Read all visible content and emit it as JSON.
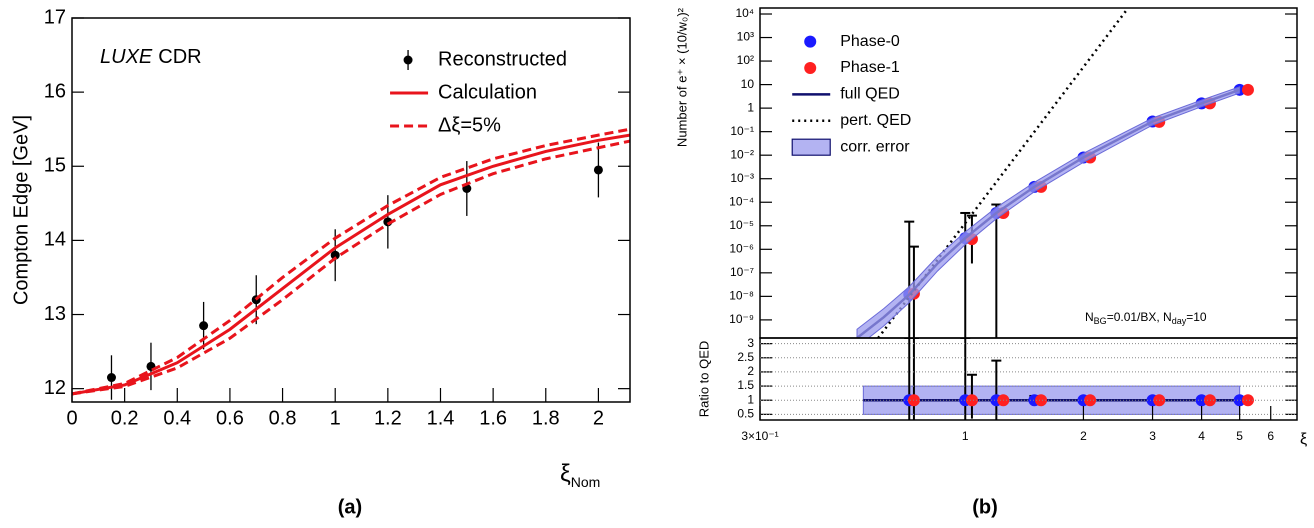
{
  "chart_data": [
    {
      "type": "line",
      "caption": "(a)",
      "ylabel": "Compton Edge [GeV]",
      "xlabel": [
        "ξ",
        "Nom"
      ],
      "annotation": [
        "LUXE",
        "CDR"
      ],
      "xlim": [
        0,
        2.12
      ],
      "ylim": [
        11.82,
        17
      ],
      "xticks": [
        0,
        0.2,
        0.4,
        0.6,
        0.8,
        1,
        1.2,
        1.4,
        1.6,
        1.8,
        2
      ],
      "yticks": [
        12,
        13,
        14,
        15,
        16,
        17
      ],
      "legend": "top-right",
      "series": [
        {
          "name": "Reconstructed",
          "type": "errorbar",
          "color": "#000000",
          "x": [
            0.15,
            0.3,
            0.5,
            0.7,
            1,
            1.2,
            1.5,
            2
          ],
          "values": [
            12.15,
            12.3,
            12.85,
            13.2,
            13.8,
            14.25,
            14.7,
            14.95
          ],
          "errors": [
            0.3,
            0.32,
            0.32,
            0.33,
            0.35,
            0.36,
            0.37,
            0.37
          ]
        },
        {
          "name": "Calculation",
          "type": "line",
          "color": "#e8141c",
          "x": [
            0,
            0.2,
            0.4,
            0.6,
            0.8,
            1,
            1.2,
            1.4,
            1.6,
            1.8,
            2,
            2.12
          ],
          "values": [
            11.93,
            12.05,
            12.35,
            12.8,
            13.35,
            13.9,
            14.35,
            14.75,
            15.0,
            15.2,
            15.35,
            15.42
          ]
        },
        {
          "name": "Δξ=5%",
          "type": "line",
          "style": "dashed",
          "color": "#e8141c",
          "x": [
            0,
            0.2,
            0.4,
            0.6,
            0.8,
            1,
            1.2,
            1.4,
            1.6,
            1.8,
            2,
            2.12
          ],
          "values": [
            11.93,
            12.07,
            12.42,
            12.92,
            13.5,
            14.03,
            14.47,
            14.85,
            15.1,
            15.28,
            15.42,
            15.5
          ],
          "values_low": [
            11.93,
            12.03,
            12.28,
            12.68,
            13.2,
            13.76,
            14.22,
            14.62,
            14.9,
            15.1,
            15.25,
            15.34
          ]
        }
      ]
    },
    {
      "type": "line",
      "caption": "(b)",
      "ylabel": "Number of e⁺ × (10/w₀)²",
      "annotation": [
        "N",
        "BG",
        "=0.01/BX, N",
        "day",
        "=10"
      ],
      "logx": true,
      "logy": true,
      "xlim": [
        0.3,
        7
      ],
      "ylim": [
        1.7e-10,
        18000
      ],
      "yticks": [
        {
          "value": 1e-09,
          "label": "10⁻⁹"
        },
        {
          "value": 1e-08,
          "label": "10⁻⁸"
        },
        {
          "value": 1e-07,
          "label": "10⁻⁷"
        },
        {
          "value": 1e-06,
          "label": "10⁻⁶"
        },
        {
          "value": 1e-05,
          "label": "10⁻⁵"
        },
        {
          "value": 0.0001,
          "label": "10⁻⁴"
        },
        {
          "value": 0.001,
          "label": "10⁻³"
        },
        {
          "value": 0.01,
          "label": "10⁻²"
        },
        {
          "value": 0.1,
          "label": "10⁻¹"
        },
        1,
        10,
        {
          "value": 100,
          "label": "10²"
        },
        {
          "value": 1000,
          "label": "10³"
        },
        {
          "value": 10000,
          "label": "10⁴"
        }
      ],
      "legend": "top-left",
      "series": [
        {
          "name": "Phase-0",
          "type": "errorbar",
          "color": "#1a1aff",
          "x": [
            0.72,
            1.0,
            1.2,
            1.5,
            2.0,
            3.0,
            4.0,
            5.0
          ],
          "values": [
            1.2e-08,
            3e-06,
            3.5e-05,
            0.00045,
            0.008,
            0.27,
            1.6,
            6
          ],
          "lower": [
            1e-11,
            1e-11,
            1e-11,
            null,
            null,
            null,
            null,
            null
          ],
          "upper": [
            1.5e-05,
            3.5e-05,
            8e-05,
            null,
            null,
            null,
            null,
            null
          ]
        },
        {
          "name": "Phase-1",
          "type": "errorbar",
          "color": "#ff2020",
          "x": [
            0.74,
            1.04,
            1.25,
            1.56,
            2.08,
            3.12,
            4.2,
            5.25
          ],
          "values": [
            1.3e-08,
            2.7e-06,
            3.5e-05,
            0.00045,
            0.008,
            0.26,
            1.6,
            6
          ],
          "lower": [
            1e-11,
            2.5e-07,
            null,
            null,
            null,
            null,
            null,
            null
          ],
          "upper": [
            1.3e-06,
            2.7e-05,
            null,
            null,
            null,
            null,
            null,
            null
          ]
        },
        {
          "name": "full QED",
          "type": "line",
          "color": "#10106e",
          "x": [
            0.53,
            0.62,
            0.72,
            0.85,
            1,
            1.2,
            1.5,
            2,
            3,
            4,
            5
          ],
          "values": [
            1.7e-10,
            1.3e-09,
            1.2e-08,
            2.5e-07,
            3e-06,
            3.5e-05,
            0.00045,
            0.008,
            0.27,
            1.6,
            6
          ]
        },
        {
          "name": "pert. QED",
          "type": "line",
          "style": "dotted",
          "color": "#000000",
          "x": [
            0.6,
            2.6
          ],
          "values": [
            1.7e-10,
            18000
          ]
        },
        {
          "name": "corr. error",
          "type": "band",
          "color": "#9a9aee",
          "x": [
            0.53,
            0.62,
            0.72,
            0.85,
            1,
            1.2,
            1.5,
            2,
            3,
            4,
            5
          ],
          "upper": [
            4e-10,
            3e-09,
            2.6e-08,
            5e-07,
            5.5e-06,
            6e-05,
            0.0007,
            0.012,
            0.38,
            2.2,
            8
          ],
          "lower": [
            7e-11,
            5.5e-10,
            5.5e-09,
            1.2e-07,
            1.6e-06,
            2e-05,
            0.00028,
            0.005,
            0.19,
            1.15,
            4.4
          ]
        }
      ]
    },
    {
      "type": "line",
      "ylabel": "Ratio to QED",
      "xlabel": [
        "ξ"
      ],
      "logx": true,
      "xlim": [
        0.3,
        7
      ],
      "ylim": [
        0.3,
        3.2
      ],
      "grid": true,
      "xticks": [
        {
          "value": 0.3,
          "label": "3×10⁻¹"
        },
        1,
        2,
        3,
        4,
        5,
        6
      ],
      "yticks": [
        0.5,
        1,
        1.5,
        2,
        2.5,
        3
      ],
      "series": [
        {
          "type": "band",
          "color": "#9a9aee",
          "x": [
            0.55,
            5
          ],
          "upper": [
            1.5,
            1.5
          ],
          "lower": [
            0.5,
            0.5
          ]
        },
        {
          "type": "line",
          "color": "#10106e",
          "x": [
            0.55,
            5
          ],
          "values": [
            1,
            1
          ]
        },
        {
          "type": "errorbar",
          "color": "#1a1aff",
          "x": [
            0.72,
            1.0,
            1.2,
            1.5,
            2.0,
            3.0,
            4.0,
            5.0
          ],
          "values": [
            1,
            1,
            1,
            1,
            1,
            1,
            1,
            1
          ],
          "lower": [
            0.3,
            0.3,
            0.3,
            0.85,
            null,
            null,
            null,
            null
          ],
          "upper": [
            3.2,
            3.2,
            2.4,
            1.15,
            null,
            null,
            null,
            null
          ]
        },
        {
          "type": "errorbar",
          "color": "#ff2020",
          "x": [
            0.74,
            1.04,
            1.25,
            1.56,
            2.08,
            3.12,
            4.2,
            5.25
          ],
          "values": [
            1,
            1,
            1,
            1,
            1,
            1,
            1,
            1
          ],
          "lower": [
            0.3,
            0.35,
            null,
            null,
            null,
            null,
            null,
            null
          ],
          "upper": [
            3.2,
            1.9,
            null,
            null,
            null,
            null,
            null,
            null
          ]
        }
      ]
    }
  ]
}
